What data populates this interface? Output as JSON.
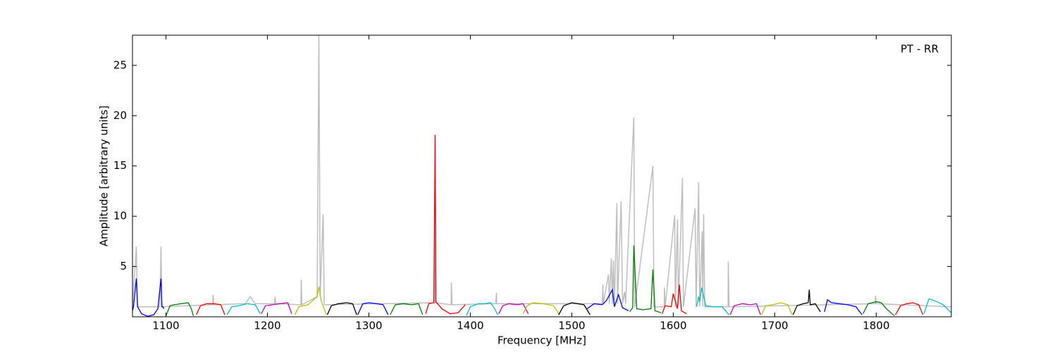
{
  "chart_data": {
    "type": "line",
    "annotation": "PT - RR",
    "xlabel": "Frequency [MHz]",
    "ylabel": "Amplitude [arbitrary units]",
    "xlim": [
      1067,
      1874
    ],
    "ylim": [
      0,
      28
    ],
    "xticks": [
      1100,
      1200,
      1300,
      1400,
      1500,
      1600,
      1700,
      1800
    ],
    "yticks": [
      5,
      10,
      15,
      20,
      25
    ],
    "series": [
      {
        "color": "#bebebe",
        "x": [
          1067,
          1070.8,
          1072,
          1094,
          1095.1,
          1096,
          1146,
          1146.5,
          1147,
          1178,
          1183,
          1188,
          1207,
          1207.6,
          1208,
          1233,
          1233.3,
          1234,
          1249,
          1250.7,
          1252,
          1254.9,
          1256,
          1365,
          1365.3,
          1366,
          1381,
          1381.3,
          1382,
          1425,
          1425.7,
          1426,
          1530,
          1530.6,
          1531,
          1536.1,
          1537,
          1538.9,
          1540,
          1541,
          1542,
          1544.4,
          1545,
          1548.6,
          1550,
          1552.1,
          1553,
          1561.1,
          1562,
          1579.9,
          1581,
          1591,
          1591.3,
          1592,
          1601.4,
          1602,
          1604.2,
          1605,
          1609,
          1610,
          1621.5,
          1622.5,
          1625,
          1626,
          1628.5,
          1629,
          1629.9,
          1631,
          1654,
          1654.2,
          1655,
          1799,
          1799.3,
          1800,
          1874
        ],
        "values": [
          1.0,
          7.0,
          1.0,
          1.0,
          7.0,
          1.0,
          1.2,
          2.2,
          1.2,
          1.3,
          2.0,
          1.3,
          1.3,
          2.0,
          1.3,
          1.2,
          3.7,
          1.2,
          2.0,
          28.0,
          2.0,
          10.2,
          1.2,
          1.4,
          18.0,
          1.4,
          1.2,
          3.4,
          1.2,
          1.3,
          2.4,
          1.3,
          1.3,
          3.2,
          1.3,
          4.2,
          1.3,
          5.8,
          1.3,
          5.6,
          1.3,
          11.3,
          1.3,
          11.5,
          1.3,
          2.5,
          1.3,
          19.8,
          1.0,
          15.0,
          1.0,
          1.0,
          2.9,
          1.0,
          10.1,
          1.0,
          9.7,
          1.0,
          13.8,
          1.0,
          10.8,
          1.0,
          13.4,
          1.0,
          8.5,
          1.0,
          10.2,
          1.0,
          1.0,
          5.5,
          1.0,
          1.3,
          2.1,
          1.3,
          1.0
        ]
      },
      {
        "color": "#0000ff",
        "x": [
          1067,
          1068,
          1070.8,
          1072,
          1076,
          1082,
          1088,
          1092,
          1095.1,
          1096,
          1097,
          1098
        ],
        "values": [
          0.6,
          1.0,
          3.8,
          1.0,
          0.3,
          0.05,
          0.2,
          0.8,
          3.8,
          1.0,
          1.0,
          0.8
        ]
      },
      {
        "color": "#008000",
        "x": [
          1100,
          1104,
          1108,
          1115,
          1122,
          1125,
          1127
        ],
        "values": [
          0.1,
          1.1,
          1.2,
          1.3,
          1.4,
          0.8,
          0.1
        ]
      },
      {
        "color": "#ff0000",
        "x": [
          1130,
          1134,
          1140,
          1148,
          1154,
          1158
        ],
        "values": [
          0.2,
          1.1,
          1.3,
          1.3,
          1.2,
          0.2
        ]
      },
      {
        "color": "#00bfbf",
        "x": [
          1160,
          1165,
          1172,
          1180,
          1188,
          1193
        ],
        "values": [
          0.2,
          1.0,
          1.1,
          1.3,
          1.2,
          0.3
        ]
      },
      {
        "color": "#bf00bf",
        "x": [
          1194,
          1198,
          1205,
          1212,
          1220,
          1224
        ],
        "values": [
          0.3,
          1.1,
          1.2,
          1.3,
          1.4,
          0.3
        ]
      },
      {
        "color": "#bfbf00",
        "x": [
          1227,
          1231,
          1240,
          1249,
          1250.7,
          1253,
          1258
        ],
        "values": [
          0.2,
          1.0,
          1.2,
          2.0,
          3.0,
          1.6,
          0.2
        ]
      },
      {
        "color": "#000000",
        "x": [
          1259,
          1263,
          1270,
          1278,
          1284,
          1288
        ],
        "values": [
          0.2,
          1.1,
          1.3,
          1.4,
          1.3,
          0.2
        ]
      },
      {
        "color": "#0000ff",
        "x": [
          1289,
          1294,
          1300,
          1308,
          1314,
          1319
        ],
        "values": [
          0.2,
          1.3,
          1.4,
          1.3,
          1.2,
          0.2
        ]
      },
      {
        "color": "#008000",
        "x": [
          1321,
          1326,
          1334,
          1342,
          1349,
          1353
        ],
        "values": [
          0.2,
          1.2,
          1.3,
          1.2,
          1.3,
          0.2
        ]
      },
      {
        "color": "#ff0000",
        "x": [
          1356,
          1359,
          1364,
          1365.3,
          1366,
          1372,
          1380,
          1388,
          1395
        ],
        "values": [
          0.3,
          1.3,
          1.4,
          18.1,
          1.5,
          0.8,
          0.3,
          0.4,
          1.2
        ]
      },
      {
        "color": "#00bfbf",
        "x": [
          1396,
          1400,
          1408,
          1414,
          1420,
          1424,
          1427
        ],
        "values": [
          0.1,
          1.0,
          1.3,
          1.3,
          1.4,
          0.8,
          0.2
        ]
      },
      {
        "color": "#bf00bf",
        "x": [
          1428,
          1432,
          1438,
          1446,
          1452,
          1457
        ],
        "values": [
          0.3,
          1.1,
          1.3,
          1.2,
          1.3,
          0.3
        ]
      },
      {
        "color": "#bfbf00",
        "x": [
          1452,
          1456,
          1462,
          1472,
          1482,
          1488
        ],
        "values": [
          0.3,
          1.1,
          1.4,
          1.3,
          1.1,
          0.2
        ]
      },
      {
        "color": "#000000",
        "x": [
          1487,
          1492,
          1500,
          1506,
          1512,
          1518
        ],
        "values": [
          0.2,
          1.1,
          1.4,
          1.3,
          1.2,
          0.2
        ]
      },
      {
        "color": "#0000ff",
        "x": [
          1515,
          1522,
          1530,
          1534,
          1540,
          1542,
          1546,
          1550,
          1556
        ],
        "values": [
          0.8,
          1.3,
          1.2,
          1.6,
          2.7,
          1.0,
          2.2,
          0.9,
          0.6
        ]
      },
      {
        "color": "#008000",
        "x": [
          1557,
          1560,
          1561.1,
          1564,
          1570,
          1578,
          1579.9,
          1582,
          1588
        ],
        "values": [
          0.5,
          0.9,
          7.1,
          0.8,
          0.7,
          0.8,
          4.7,
          0.6,
          0.4
        ]
      },
      {
        "color": "#ff0000",
        "x": [
          1589,
          1592,
          1598,
          1600,
          1604,
          1606,
          1608,
          1613
        ],
        "values": [
          0.3,
          1.1,
          1.0,
          2.3,
          0.8,
          3.2,
          0.6,
          0.3
        ]
      },
      {
        "color": "#00bfbf",
        "x": [
          1623,
          1625,
          1626,
          1628,
          1632,
          1640,
          1648,
          1655
        ],
        "values": [
          1.0,
          2.0,
          1.5,
          2.9,
          1.1,
          1.0,
          1.0,
          0.2
        ]
      },
      {
        "color": "#bf00bf",
        "x": [
          1656,
          1660,
          1668,
          1676,
          1682,
          1686
        ],
        "values": [
          0.2,
          1.1,
          1.3,
          1.2,
          1.3,
          0.2
        ]
      },
      {
        "color": "#bfbf00",
        "x": [
          1687,
          1691,
          1698,
          1706,
          1713,
          1717
        ],
        "values": [
          0.2,
          1.1,
          1.2,
          1.4,
          1.2,
          0.2
        ]
      },
      {
        "color": "#000000",
        "x": [
          1718,
          1722,
          1728,
          1733,
          1734,
          1735,
          1740,
          1745
        ],
        "values": [
          0.2,
          1.1,
          1.3,
          1.4,
          2.7,
          1.2,
          1.3,
          0.5
        ]
      },
      {
        "color": "#0000ff",
        "x": [
          1749,
          1752,
          1756,
          1764,
          1772,
          1780,
          1786
        ],
        "values": [
          0.5,
          1.7,
          1.4,
          1.3,
          1.2,
          1.0,
          0.2
        ]
      },
      {
        "color": "#008000",
        "x": [
          1787,
          1792,
          1800,
          1805,
          1810,
          1818
        ],
        "values": [
          0.3,
          1.3,
          1.5,
          1.4,
          0.8,
          0.1
        ]
      },
      {
        "color": "#ff0000",
        "x": [
          1819,
          1824,
          1830,
          1836,
          1842,
          1846
        ],
        "values": [
          0.2,
          1.1,
          1.3,
          1.4,
          1.2,
          0.2
        ]
      },
      {
        "color": "#00bfbf",
        "x": [
          1847,
          1852,
          1860,
          1866,
          1872,
          1874
        ],
        "values": [
          0.3,
          1.8,
          1.5,
          1.2,
          0.6,
          0.4
        ]
      }
    ]
  }
}
